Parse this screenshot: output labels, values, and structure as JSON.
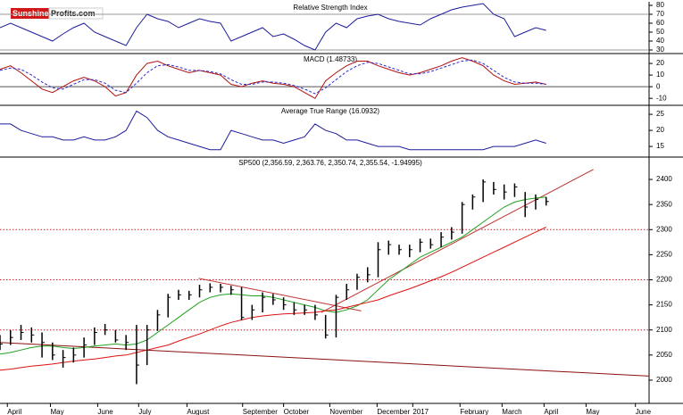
{
  "logo": {
    "left": "Sunshine",
    "right": "Profits.com"
  },
  "chart_data": [
    {
      "type": "line",
      "title": "Relative Strength Index",
      "x": [
        0,
        1,
        2,
        3,
        4,
        5,
        6,
        7,
        8,
        9,
        10,
        11,
        12,
        13,
        14,
        15,
        16,
        17,
        18,
        19,
        20,
        21,
        22,
        23,
        24,
        25,
        26,
        27,
        28,
        29,
        30,
        31,
        32,
        33,
        34,
        35,
        36,
        37,
        38,
        39,
        40,
        41,
        42,
        43,
        44,
        45,
        46,
        47,
        48,
        49,
        50,
        51,
        52
      ],
      "xlim": [
        0,
        61.8
      ],
      "ylim": [
        26,
        84
      ],
      "yticks": [
        30,
        40,
        50,
        60,
        70,
        80
      ],
      "hlines": [
        70,
        30
      ],
      "hline_color": "#999999",
      "series": [
        {
          "color": "#1c1c9c",
          "values": [
            55,
            60,
            55,
            50,
            45,
            40,
            48,
            55,
            60,
            50,
            45,
            40,
            35,
            55,
            70,
            65,
            62,
            55,
            60,
            65,
            62,
            60,
            40,
            45,
            50,
            55,
            45,
            48,
            42,
            35,
            30,
            50,
            60,
            55,
            65,
            68,
            70,
            65,
            62,
            60,
            58,
            65,
            70,
            75,
            78,
            80,
            82,
            70,
            65,
            45,
            50,
            55,
            52
          ]
        }
      ]
    },
    {
      "type": "line",
      "title": "MACD (1.48733)",
      "x": [
        0,
        1,
        2,
        3,
        4,
        5,
        6,
        7,
        8,
        9,
        10,
        11,
        12,
        13,
        14,
        15,
        16,
        17,
        18,
        19,
        20,
        21,
        22,
        23,
        24,
        25,
        26,
        27,
        28,
        29,
        30,
        31,
        32,
        33,
        34,
        35,
        36,
        37,
        38,
        39,
        40,
        41,
        42,
        43,
        44,
        45,
        46,
        47,
        48,
        49,
        50,
        51,
        52
      ],
      "xlim": [
        0,
        61.8
      ],
      "ylim": [
        -16,
        28.5
      ],
      "yticks": [
        -10,
        0,
        10,
        20
      ],
      "hlines": [
        0
      ],
      "hline_color": "#555555",
      "series": [
        {
          "color": "#b01010",
          "values": [
            15,
            18,
            12,
            5,
            -2,
            -5,
            0,
            5,
            8,
            5,
            0,
            -8,
            -5,
            10,
            20,
            22,
            18,
            15,
            12,
            14,
            12,
            10,
            2,
            0,
            3,
            5,
            3,
            2,
            0,
            -5,
            -10,
            5,
            12,
            18,
            22,
            22,
            18,
            15,
            12,
            10,
            12,
            15,
            18,
            22,
            25,
            22,
            18,
            10,
            5,
            2,
            3,
            4,
            2
          ]
        },
        {
          "color": "#2a2ad0",
          "dashed": true,
          "values": [
            14,
            16,
            15,
            10,
            4,
            -1,
            -2,
            2,
            6,
            6,
            3,
            -3,
            -5,
            3,
            12,
            18,
            19,
            17,
            14,
            14,
            13,
            11,
            6,
            2,
            2,
            4,
            4,
            3,
            1,
            -2,
            -6,
            -1,
            6,
            13,
            18,
            21,
            20,
            17,
            14,
            11,
            11,
            13,
            16,
            19,
            22,
            23,
            20,
            14,
            8,
            4,
            3,
            3,
            2
          ]
        }
      ]
    },
    {
      "type": "line",
      "title": "Average True Range (16.0932)",
      "x": [
        0,
        1,
        2,
        3,
        4,
        5,
        6,
        7,
        8,
        9,
        10,
        11,
        12,
        13,
        14,
        15,
        16,
        17,
        18,
        19,
        20,
        21,
        22,
        23,
        24,
        25,
        26,
        27,
        28,
        29,
        30,
        31,
        32,
        33,
        34,
        35,
        36,
        37,
        38,
        39,
        40,
        41,
        42,
        43,
        44,
        45,
        46,
        47,
        48,
        49,
        50,
        51,
        52
      ],
      "xlim": [
        0,
        61.8
      ],
      "ylim": [
        11.7,
        27.8
      ],
      "yticks": [
        15,
        20,
        25
      ],
      "series": [
        {
          "color": "#1c1c9c",
          "values": [
            22,
            22,
            20,
            19,
            18,
            18,
            17,
            17,
            18,
            17,
            17,
            18,
            20,
            26,
            24,
            20,
            18,
            17,
            16,
            15,
            14,
            14,
            20,
            19,
            18,
            17,
            17,
            16,
            17,
            18,
            22,
            20,
            19,
            17,
            17,
            16,
            15,
            15,
            15,
            14,
            14,
            14,
            14,
            14,
            14,
            14,
            14,
            15,
            15,
            15,
            16,
            17,
            16
          ]
        }
      ]
    },
    {
      "type": "hlc",
      "title": "SP500 (2,356.59, 2,363.76, 2,350.74, 2,355.54, -1.94995)",
      "x": [
        0,
        1,
        2,
        3,
        4,
        5,
        6,
        7,
        8,
        9,
        10,
        11,
        12,
        13,
        14,
        15,
        16,
        17,
        18,
        19,
        20,
        21,
        22,
        23,
        24,
        25,
        26,
        27,
        28,
        29,
        30,
        31,
        32,
        33,
        34,
        35,
        36,
        37,
        38,
        39,
        40,
        41,
        42,
        43,
        44,
        45,
        46,
        47,
        48,
        49,
        50,
        51,
        52
      ],
      "xlim": [
        0,
        61.8
      ],
      "ylim": [
        1953.6,
        2444.6
      ],
      "yticks": [
        2000,
        2050,
        2100,
        2150,
        2200,
        2250,
        2300,
        2350,
        2400
      ],
      "xticks": [
        {
          "value": 0.7,
          "label": "April"
        },
        {
          "value": 4.8,
          "label": "May"
        },
        {
          "value": 9.3,
          "label": "June"
        },
        {
          "value": 13.2,
          "label": "July"
        },
        {
          "value": 17.8,
          "label": "August"
        },
        {
          "value": 23.1,
          "label": "September"
        },
        {
          "value": 27,
          "label": "October"
        },
        {
          "value": 31.4,
          "label": "November"
        },
        {
          "value": 35.9,
          "label": "December"
        },
        {
          "value": 39.3,
          "label": "2017"
        },
        {
          "value": 43.8,
          "label": "February"
        },
        {
          "value": 47.8,
          "label": "March"
        },
        {
          "value": 51.8,
          "label": "April"
        },
        {
          "value": 55.8,
          "label": "May"
        },
        {
          "value": 60.5,
          "label": "June"
        }
      ],
      "hlines": [
        2100,
        2200,
        2300
      ],
      "hline_color": "#d02020",
      "hline_dotted": true,
      "bar_color": "#000000",
      "high": [
        2090,
        2100,
        2110,
        2105,
        2095,
        2075,
        2060,
        2065,
        2085,
        2105,
        2112,
        2100,
        2090,
        2110,
        2110,
        2140,
        2172,
        2180,
        2178,
        2190,
        2193,
        2192,
        2188,
        2185,
        2150,
        2175,
        2172,
        2165,
        2155,
        2150,
        2150,
        2130,
        2170,
        2192,
        2212,
        2225,
        2275,
        2278,
        2270,
        2270,
        2282,
        2282,
        2295,
        2305,
        2355,
        2370,
        2400,
        2395,
        2390,
        2392,
        2375,
        2370,
        2365
      ],
      "low": [
        2060,
        2070,
        2080,
        2075,
        2045,
        2040,
        2025,
        2035,
        2045,
        2070,
        2090,
        2075,
        2060,
        1992,
        2030,
        2098,
        2125,
        2160,
        2160,
        2165,
        2175,
        2175,
        2170,
        2120,
        2120,
        2135,
        2150,
        2140,
        2130,
        2130,
        2120,
        2083,
        2085,
        2160,
        2180,
        2195,
        2205,
        2250,
        2250,
        2245,
        2255,
        2262,
        2265,
        2280,
        2292,
        2340,
        2355,
        2370,
        2360,
        2365,
        2325,
        2340,
        2348
      ],
      "close": [
        2072,
        2085,
        2095,
        2090,
        2075,
        2050,
        2045,
        2050,
        2070,
        2095,
        2100,
        2080,
        2075,
        2030,
        2100,
        2130,
        2165,
        2170,
        2170,
        2180,
        2185,
        2185,
        2180,
        2125,
        2140,
        2165,
        2160,
        2150,
        2140,
        2140,
        2130,
        2090,
        2165,
        2180,
        2205,
        2210,
        2260,
        2270,
        2260,
        2260,
        2275,
        2270,
        2285,
        2295,
        2350,
        2365,
        2395,
        2380,
        2375,
        2385,
        2345,
        2360,
        2356
      ],
      "series": [
        {
          "color": "#1fa01f",
          "values": [
            2052,
            2055,
            2060,
            2065,
            2068,
            2068,
            2065,
            2063,
            2065,
            2068,
            2070,
            2072,
            2070,
            2072,
            2080,
            2095,
            2110,
            2125,
            2140,
            2155,
            2165,
            2170,
            2172,
            2170,
            2168,
            2168,
            2165,
            2160,
            2155,
            2150,
            2145,
            2138,
            2135,
            2140,
            2148,
            2160,
            2180,
            2200,
            2215,
            2230,
            2245,
            2255,
            2265,
            2275,
            2285,
            2300,
            2315,
            2330,
            2345,
            2355,
            2360,
            2363,
            2365
          ]
        },
        {
          "color": "#e01010",
          "values": [
            2020,
            2022,
            2025,
            2028,
            2030,
            2032,
            2035,
            2038,
            2040,
            2042,
            2045,
            2048,
            2050,
            2055,
            2060,
            2065,
            2070,
            2078,
            2085,
            2092,
            2100,
            2108,
            2115,
            2120,
            2125,
            2128,
            2130,
            2132,
            2133,
            2134,
            2135,
            2138,
            2140,
            2145,
            2150,
            2155,
            2160,
            2168,
            2175,
            2182,
            2190,
            2198,
            2206,
            2215,
            2225,
            2235,
            2245,
            2255,
            2265,
            2275,
            2285,
            2295,
            2305
          ]
        }
      ],
      "trendlines": [
        {
          "color": "#8b1010",
          "x": [
            0,
            61.8
          ],
          "y": [
            2075,
            2008
          ]
        },
        {
          "color": "#c03030",
          "x": [
            30.6,
            56.5
          ],
          "y": [
            2135,
            2420
          ]
        },
        {
          "color": "#c03030",
          "x": [
            18.9,
            34.4
          ],
          "y": [
            2203,
            2138
          ]
        }
      ]
    }
  ]
}
